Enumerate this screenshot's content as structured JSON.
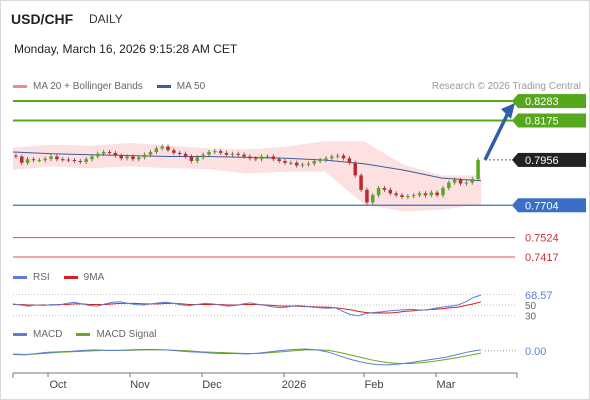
{
  "header": {
    "symbol": "USD/CHF",
    "timeframe": "DAILY",
    "datetime": "Monday, March 16, 2026 9:15:28 AM CET"
  },
  "main_legend": [
    {
      "label": "MA 20 + Bollinger Bands",
      "color": "#f08a8a"
    },
    {
      "label": "MA 50",
      "color": "#3a5f9e"
    }
  ],
  "credit": "Research © 2026 Trading Central",
  "rsi_legend": [
    {
      "label": "RSI",
      "color": "#5b7fd6"
    },
    {
      "label": "9MA",
      "color": "#d42020"
    }
  ],
  "macd_legend": [
    {
      "label": "MACD",
      "color": "#5b7fd6"
    },
    {
      "label": "MACD Signal",
      "color": "#6aa81e"
    }
  ],
  "colors": {
    "up": "#5aa81e",
    "down": "#c0282c",
    "resistance": "#55a81e",
    "support": "#3a6fc8",
    "pivot_line": "#e05050",
    "bb_fill": "#fde0e0",
    "arrow": "#2f5fa6"
  },
  "chart_data": [
    {
      "type": "candlestick",
      "title": "USD/CHF",
      "x_tick_labels": [
        "Oct",
        "Nov",
        "Dec",
        "2026",
        "Feb",
        "Mar"
      ],
      "levels": [
        {
          "value": 0.8283,
          "label": "0.8283",
          "style": "resistance"
        },
        {
          "value": 0.8175,
          "label": "0.8175",
          "style": "resistance"
        },
        {
          "value": 0.7956,
          "label": "0.7956",
          "style": "last"
        },
        {
          "value": 0.7704,
          "label": "0.7704",
          "style": "pivot"
        },
        {
          "value": 0.7524,
          "label": "0.7524",
          "style": "support"
        },
        {
          "value": 0.7417,
          "label": "0.7417",
          "style": "support"
        }
      ],
      "ylim": [
        0.74,
        0.83
      ],
      "ma50": [
        0.8,
        0.799,
        0.7985,
        0.798,
        0.7975,
        0.7975,
        0.797,
        0.7965,
        0.7955,
        0.7935,
        0.79,
        0.7855,
        0.784
      ],
      "bb_upper": [
        0.8025,
        0.804,
        0.8035,
        0.805,
        0.8035,
        0.802,
        0.8015,
        0.803,
        0.806,
        0.806,
        0.793,
        0.787,
        0.787
      ],
      "bb_lower": [
        0.79,
        0.792,
        0.791,
        0.792,
        0.791,
        0.7905,
        0.788,
        0.789,
        0.789,
        0.771,
        0.767,
        0.768,
        0.771
      ],
      "closes": [
        0.7975,
        0.794,
        0.796,
        0.7955,
        0.7955,
        0.7962,
        0.7975,
        0.796,
        0.7958,
        0.7955,
        0.795,
        0.7945,
        0.796,
        0.7975,
        0.799,
        0.8,
        0.7995,
        0.798,
        0.7965,
        0.7975,
        0.796,
        0.797,
        0.7985,
        0.8,
        0.802,
        0.803,
        0.801,
        0.7995,
        0.799,
        0.7975,
        0.795,
        0.797,
        0.7985,
        0.8,
        0.8005,
        0.7995,
        0.7985,
        0.799,
        0.7985,
        0.7975,
        0.7965,
        0.796,
        0.7975,
        0.7975,
        0.796,
        0.795,
        0.794,
        0.794,
        0.7925,
        0.793,
        0.7935,
        0.795,
        0.7955,
        0.7965,
        0.7975,
        0.798,
        0.7965,
        0.794,
        0.787,
        0.779,
        0.772,
        0.776,
        0.78,
        0.779,
        0.777,
        0.776,
        0.775,
        0.7755,
        0.776,
        0.777,
        0.776,
        0.7775,
        0.776,
        0.78,
        0.783,
        0.7845,
        0.7825,
        0.783,
        0.785,
        0.7956
      ]
    },
    {
      "type": "line",
      "title": "RSI",
      "last_value": 68.57,
      "last_label": "68.57",
      "y_tick_labels": [
        "50",
        "30"
      ],
      "ylim": [
        20,
        80
      ],
      "rsi": [
        52,
        50,
        48,
        50,
        49,
        51,
        50,
        53,
        55,
        52,
        49,
        48,
        52,
        55,
        56,
        53,
        51,
        50,
        52,
        54,
        55,
        53,
        50,
        49,
        51,
        53,
        52,
        50,
        48,
        49,
        52,
        54,
        51,
        49,
        46,
        45,
        47,
        49,
        48,
        46,
        45,
        44,
        45,
        38,
        32,
        30,
        34,
        36,
        37,
        39,
        40,
        41,
        42,
        40,
        41,
        44,
        46,
        48,
        50,
        56,
        64,
        68.57
      ],
      "ma9": [
        51,
        51,
        50,
        50,
        50,
        50,
        51,
        51,
        52,
        52,
        51,
        51,
        51,
        52,
        53,
        53,
        53,
        52,
        52,
        52,
        53,
        53,
        52,
        51,
        51,
        51,
        51,
        51,
        50,
        50,
        51,
        51,
        51,
        50,
        49,
        48,
        48,
        48,
        47,
        47,
        46,
        46,
        45,
        43,
        41,
        38,
        36,
        35,
        35,
        35,
        36,
        38,
        39,
        40,
        41,
        42,
        43,
        45,
        46,
        49,
        52,
        56
      ]
    },
    {
      "type": "line",
      "title": "MACD",
      "last_value": 0.0,
      "last_label": "0.00",
      "ylim": [
        -0.004,
        0.0015
      ],
      "macd": [
        -0.0008,
        -0.0009,
        -0.0006,
        -0.0003,
        -0.0002,
        -0.0001,
        0.0001,
        0.0002,
        0.0001,
        0.0001,
        0.0002,
        0.0003,
        0.0003,
        0.0002,
        0.0,
        -0.0002,
        -0.0003,
        -0.0005,
        -0.0006,
        -0.0006,
        -0.0007,
        -0.0005,
        -0.0002,
        0.0001,
        0.0003,
        0.0004,
        0.0002,
        -0.0003,
        -0.0012,
        -0.002,
        -0.0026,
        -0.003,
        -0.0031,
        -0.0029,
        -0.0026,
        -0.0022,
        -0.0018,
        -0.0014,
        -0.0008,
        -0.0002,
        0.0002
      ],
      "signal": [
        -0.0007,
        -0.0008,
        -0.0007,
        -0.0005,
        -0.0003,
        -0.0002,
        -0.0001,
        0.0,
        0.0001,
        0.0001,
        0.0001,
        0.0002,
        0.0002,
        0.0002,
        0.0001,
        0.0,
        -0.0002,
        -0.0003,
        -0.0004,
        -0.0005,
        -0.0006,
        -0.0006,
        -0.0004,
        -0.0002,
        0.0,
        0.0002,
        0.0002,
        0.0001,
        -0.0004,
        -0.001,
        -0.0016,
        -0.0022,
        -0.0026,
        -0.0028,
        -0.0028,
        -0.0026,
        -0.0023,
        -0.0019,
        -0.0015,
        -0.001,
        -0.0005
      ]
    }
  ]
}
